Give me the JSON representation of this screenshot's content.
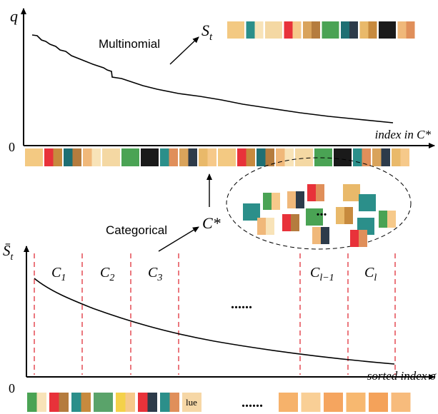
{
  "top": {
    "y_label": "q",
    "origin": "0",
    "x_label": "index in C*",
    "curve_label": "Multinomial",
    "sample_label": "S",
    "sample_subscript": "t"
  },
  "middle": {
    "label": "Categorical",
    "set_label": "C*",
    "ellipsis": "..."
  },
  "bottom": {
    "y_label": "S̄",
    "y_subscript": "t",
    "origin": "0",
    "x_label": "sorted index σ",
    "ellipsis_center": "......",
    "ellipsis_row": "......",
    "patch_text": "lue",
    "groups": [
      {
        "name": "C",
        "sub": "1"
      },
      {
        "name": "C",
        "sub": "2"
      },
      {
        "name": "C",
        "sub": "3"
      },
      {
        "name": "C",
        "sub": "l−1"
      },
      {
        "name": "C",
        "sub": "l"
      }
    ]
  }
}
